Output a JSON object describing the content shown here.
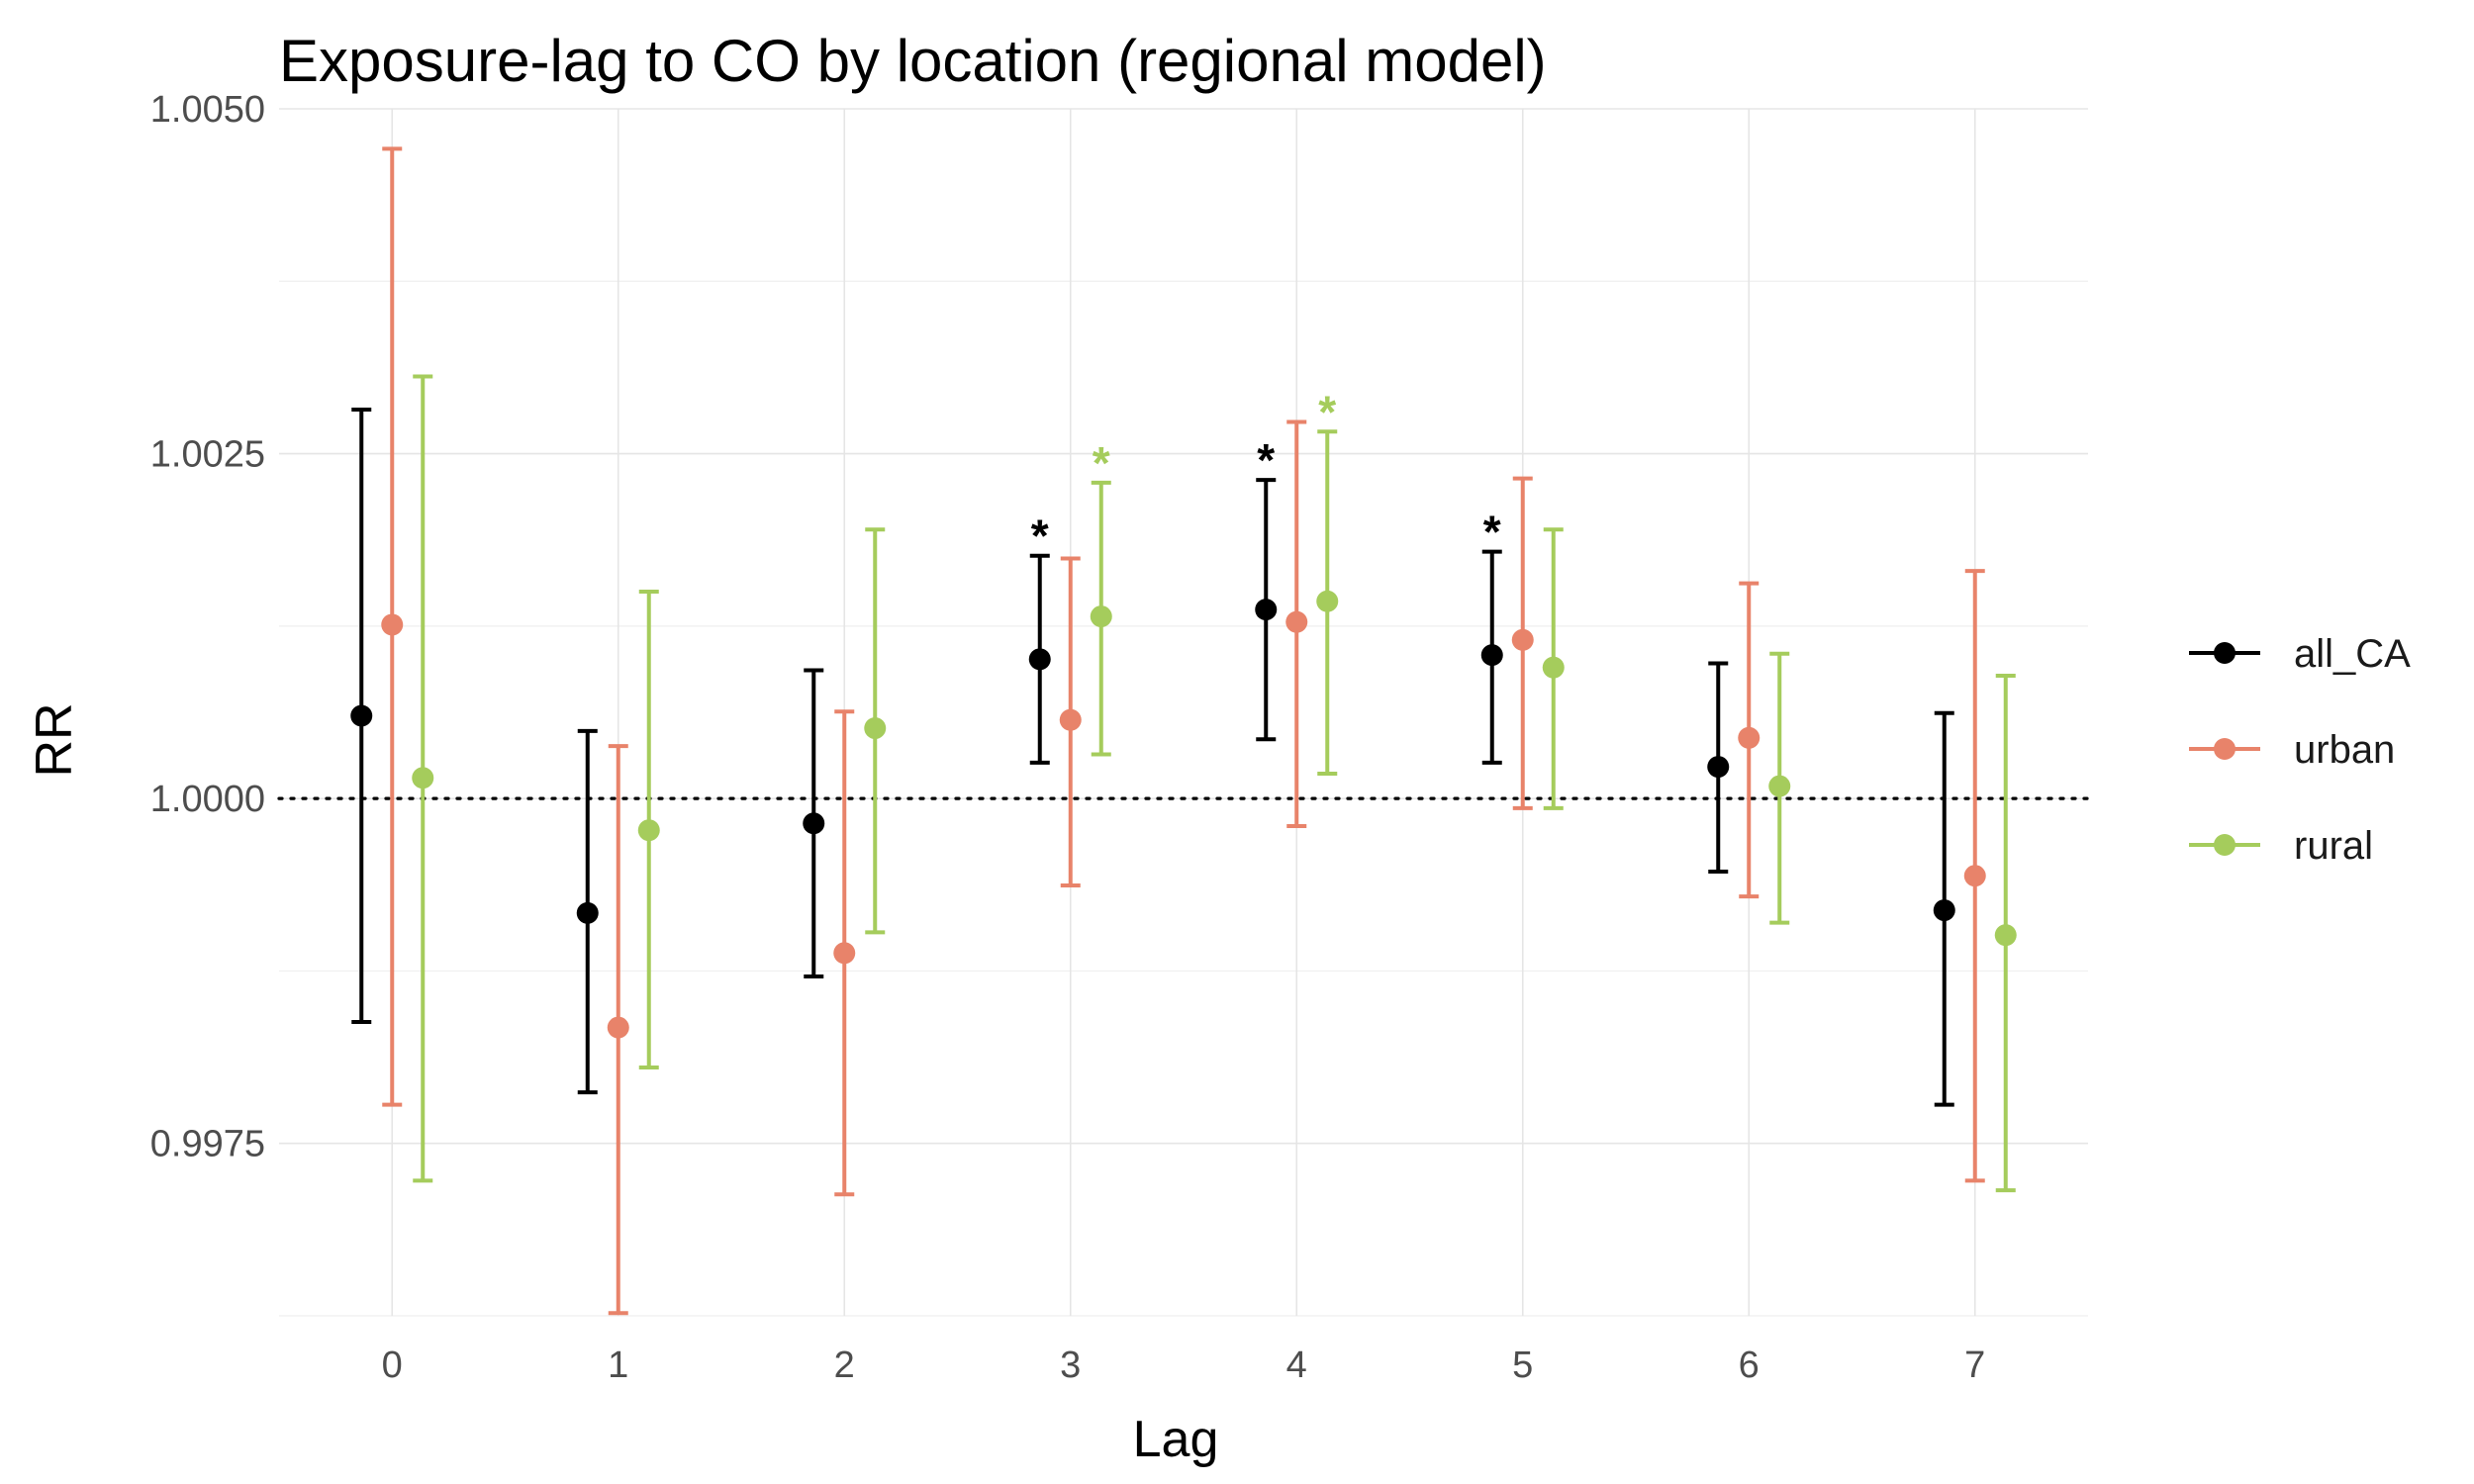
{
  "chart_data": {
    "type": "scatter",
    "title": "Exposure-lag to CO by location (regional model)",
    "xlabel": "Lag",
    "ylabel": "RR",
    "categories": [
      "0",
      "1",
      "2",
      "3",
      "4",
      "5",
      "6",
      "7"
    ],
    "ylim": [
      0.99625,
      1.005
    ],
    "y_ticks": [
      "0.9975",
      "1.0000",
      "1.0025",
      "1.0050"
    ],
    "y_tick_values": [
      0.9975,
      1.0,
      1.0025,
      1.005
    ],
    "reference_line": 1.0,
    "reference_line_style": "dotted",
    "grid": true,
    "legend_position": "right",
    "significance_marker": "*",
    "series": [
      {
        "name": "all_CA",
        "color": "#000000",
        "values": [
          1.0006,
          0.99917,
          0.99982,
          1.00101,
          1.00137,
          1.00104,
          1.00023,
          0.99919
        ],
        "lower": [
          0.99838,
          0.99787,
          0.99871,
          1.00026,
          1.00043,
          1.00026,
          0.99947,
          0.99778
        ],
        "upper": [
          1.00282,
          1.00049,
          1.00093,
          1.00176,
          1.00231,
          1.00179,
          1.00098,
          1.00062
        ],
        "significant": [
          false,
          false,
          false,
          true,
          true,
          true,
          false,
          false
        ]
      },
      {
        "name": "urban",
        "color": "#e8836a",
        "values": [
          1.00126,
          0.99834,
          0.99888,
          1.00057,
          1.00128,
          1.00115,
          1.00044,
          0.99944
        ],
        "lower": [
          0.99778,
          0.99627,
          0.99713,
          0.99937,
          0.9998,
          0.99993,
          0.99929,
          0.99723
        ],
        "upper": [
          1.00471,
          1.00038,
          1.00063,
          1.00174,
          1.00273,
          1.00232,
          1.00156,
          1.00165
        ],
        "significant": [
          false,
          false,
          false,
          false,
          false,
          false,
          false,
          false
        ]
      },
      {
        "name": "rural",
        "color": "#a5cc5c",
        "values": [
          1.00015,
          0.99977,
          1.00051,
          1.00132,
          1.00143,
          1.00095,
          1.00009,
          0.99901
        ],
        "lower": [
          0.99723,
          0.99805,
          0.99903,
          1.00032,
          1.00018,
          0.99993,
          0.9991,
          0.99716
        ],
        "upper": [
          1.00306,
          1.0015,
          1.00195,
          1.00229,
          1.00266,
          1.00195,
          1.00105,
          1.00089
        ],
        "significant": [
          false,
          false,
          false,
          true,
          true,
          false,
          false,
          false
        ]
      }
    ]
  }
}
